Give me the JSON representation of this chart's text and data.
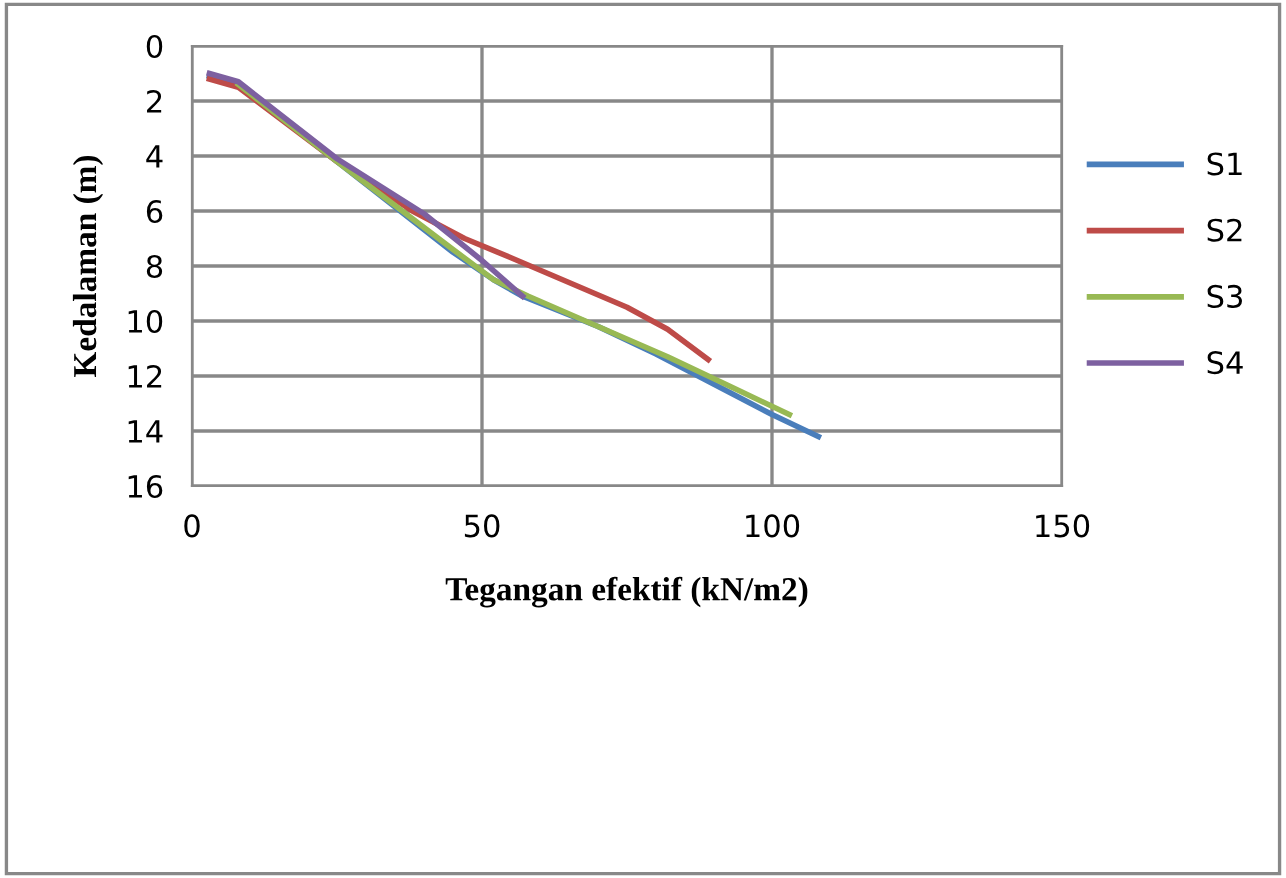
{
  "chart_data": {
    "type": "line",
    "xlabel": "Tegangan efektif (kN/m2)",
    "ylabel": "Kedalaman (m)",
    "xlim": [
      0,
      150
    ],
    "xticks": [
      0,
      50,
      100,
      150
    ],
    "ylim": [
      16,
      0
    ],
    "yticks": [
      0,
      2,
      4,
      6,
      8,
      10,
      12,
      14,
      16
    ],
    "grid": true,
    "legend": "right",
    "marker": "none",
    "series": [
      {
        "name": "S1",
        "color": "#4a7ebb",
        "x": [
          3,
          8,
          25,
          45,
          52,
          57,
          70,
          80,
          90,
          100,
          108
        ],
        "values": [
          1.1,
          1.4,
          4.2,
          7.5,
          8.5,
          9.1,
          10.2,
          11.2,
          12.3,
          13.4,
          14.2
        ]
      },
      {
        "name": "S2",
        "color": "#be4b48",
        "x": [
          3,
          8,
          25,
          38,
          47,
          55,
          65,
          75,
          82,
          89
        ],
        "values": [
          1.2,
          1.5,
          4.2,
          6,
          7,
          7.7,
          8.6,
          9.5,
          10.3,
          11.4
        ]
      },
      {
        "name": "S3",
        "color": "#98b954",
        "x": [
          8,
          25,
          45,
          52,
          58,
          70,
          82,
          93,
          103
        ],
        "values": [
          1.4,
          4.2,
          7.4,
          8.5,
          9.1,
          10.2,
          11.3,
          12.4,
          13.4
        ]
      },
      {
        "name": "S4",
        "color": "#7d60a0",
        "x": [
          3,
          8,
          25,
          40,
          50,
          57
        ],
        "values": [
          1.0,
          1.3,
          4.1,
          6.1,
          7.8,
          9.1
        ]
      }
    ]
  }
}
